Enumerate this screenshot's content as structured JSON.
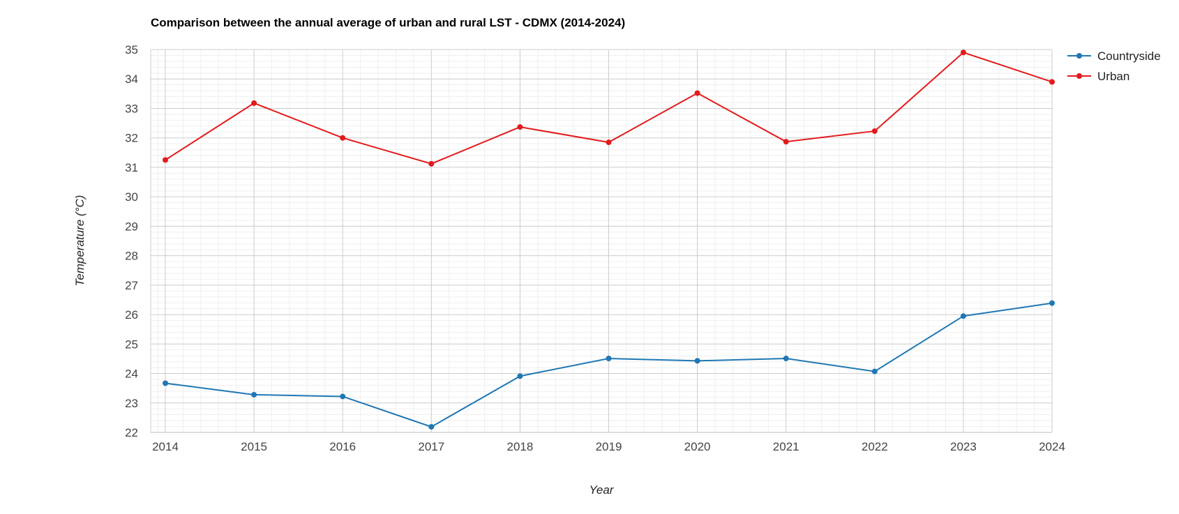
{
  "chart_data": {
    "type": "line",
    "title": "Comparison between the annual average of urban and rural LST - CDMX (2014-2024)",
    "xlabel": "Year",
    "ylabel": "Temperature (°C)",
    "x": [
      "2014",
      "2015",
      "2016",
      "2017",
      "2018",
      "2019",
      "2020",
      "2021",
      "2022",
      "2023",
      "2024"
    ],
    "ylim": [
      22,
      35
    ],
    "yticks": [
      "22",
      "23",
      "24",
      "25",
      "26",
      "27",
      "28",
      "29",
      "30",
      "31",
      "32",
      "33",
      "34",
      "35"
    ],
    "grid": true,
    "legend_position": "right",
    "series": [
      {
        "name": "Countryside",
        "color": "#1f77b4",
        "values": [
          23.67,
          23.28,
          23.22,
          22.19,
          23.91,
          24.51,
          24.43,
          24.51,
          24.07,
          25.95,
          26.39
        ]
      },
      {
        "name": "Urban",
        "color": "#e31a1c",
        "values": [
          31.25,
          33.18,
          32.0,
          31.12,
          32.37,
          31.85,
          33.52,
          31.87,
          32.23,
          34.9,
          33.9
        ]
      }
    ]
  }
}
